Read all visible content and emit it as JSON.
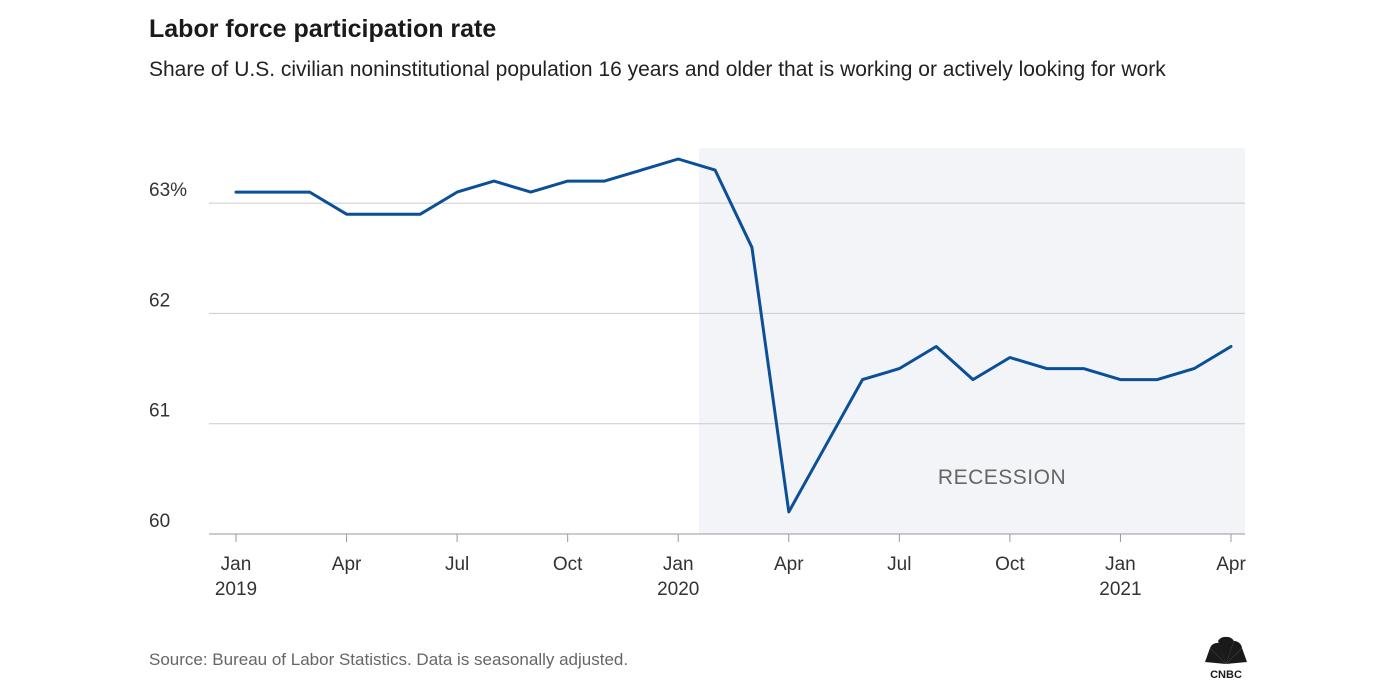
{
  "chart_data": {
    "type": "line",
    "title": "Labor force participation rate",
    "subtitle": "Share of U.S. civilian noninstitutional population 16 years and older that is working or actively looking for work",
    "source": "Source: Bureau of Labor Statistics. Data is seasonally adjusted.",
    "y_ticks": [
      {
        "value": 63,
        "label": "63%"
      },
      {
        "value": 62,
        "label": "62"
      },
      {
        "value": 61,
        "label": "61"
      },
      {
        "value": 60,
        "label": "60"
      }
    ],
    "ylim": [
      60,
      63.4
    ],
    "x_ticks": [
      {
        "date": "2019-01",
        "label": "Jan",
        "year": "2019"
      },
      {
        "date": "2019-04",
        "label": "Apr",
        "year": ""
      },
      {
        "date": "2019-07",
        "label": "Jul",
        "year": ""
      },
      {
        "date": "2019-10",
        "label": "Oct",
        "year": ""
      },
      {
        "date": "2020-01",
        "label": "Jan",
        "year": "2020"
      },
      {
        "date": "2020-04",
        "label": "Apr",
        "year": ""
      },
      {
        "date": "2020-07",
        "label": "Jul",
        "year": ""
      },
      {
        "date": "2020-10",
        "label": "Oct",
        "year": ""
      },
      {
        "date": "2021-01",
        "label": "Jan",
        "year": "2021"
      },
      {
        "date": "2021-04",
        "label": "Apr",
        "year": ""
      }
    ],
    "xlim": [
      "2019-01",
      "2021-04"
    ],
    "series": [
      {
        "color": "#0b4f96",
        "points": [
          {
            "x": "2019-01",
            "y": 63.1
          },
          {
            "x": "2019-02",
            "y": 63.1
          },
          {
            "x": "2019-03",
            "y": 63.1
          },
          {
            "x": "2019-04",
            "y": 62.9
          },
          {
            "x": "2019-05",
            "y": 62.9
          },
          {
            "x": "2019-06",
            "y": 62.9
          },
          {
            "x": "2019-07",
            "y": 63.1
          },
          {
            "x": "2019-08",
            "y": 63.2
          },
          {
            "x": "2019-09",
            "y": 63.1
          },
          {
            "x": "2019-10",
            "y": 63.2
          },
          {
            "x": "2019-11",
            "y": 63.2
          },
          {
            "x": "2019-12",
            "y": 63.3
          },
          {
            "x": "2020-01",
            "y": 63.4
          },
          {
            "x": "2020-02",
            "y": 63.3
          },
          {
            "x": "2020-03",
            "y": 62.6
          },
          {
            "x": "2020-04",
            "y": 60.2
          },
          {
            "x": "2020-05",
            "y": 60.8
          },
          {
            "x": "2020-06",
            "y": 61.4
          },
          {
            "x": "2020-07",
            "y": 61.5
          },
          {
            "x": "2020-08",
            "y": 61.7
          },
          {
            "x": "2020-09",
            "y": 61.4
          },
          {
            "x": "2020-10",
            "y": 61.6
          },
          {
            "x": "2020-11",
            "y": 61.5
          },
          {
            "x": "2020-12",
            "y": 61.5
          },
          {
            "x": "2021-01",
            "y": 61.4
          },
          {
            "x": "2021-02",
            "y": 61.4
          },
          {
            "x": "2021-03",
            "y": 61.5
          },
          {
            "x": "2021-04",
            "y": 61.7
          }
        ]
      }
    ],
    "shaded_region": {
      "start": "2020-02",
      "end": "2021-04",
      "label": "RECESSION",
      "color": "#f2f4f7"
    },
    "grid": true,
    "gridline_color": "#cccccc"
  },
  "colors": {
    "line": "#0b4f96",
    "text": "#222222",
    "muted": "#666666"
  },
  "logo": {
    "name": "cnbc-logo",
    "text": "CNBC"
  }
}
